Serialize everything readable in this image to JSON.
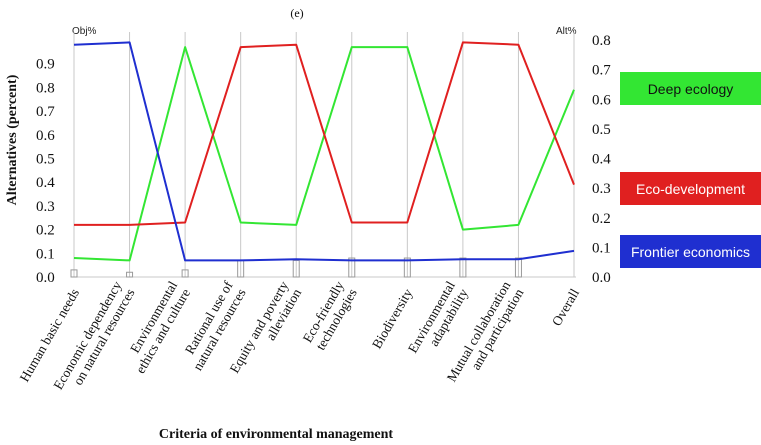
{
  "panel_label": "(e)",
  "colors": {
    "deep": "#33e633",
    "eco": "#e02020",
    "frontier": "#1f2fd0"
  },
  "chart_data": {
    "type": "line",
    "title": "(e)",
    "xlabel": "Criteria of environmental management",
    "ylabel": "Alternatives (percent)",
    "left_axis_header": "Obj%",
    "right_axis_header": "Alt%",
    "left_ticks": [
      "0.0",
      "0.1",
      "0.2",
      "0.3",
      "0.4",
      "0.5",
      "0.6",
      "0.7",
      "0.8",
      "0.9"
    ],
    "right_ticks": [
      "0.0",
      "0.1",
      "0.2",
      "0.3",
      "0.4",
      "0.5",
      "0.6",
      "0.7",
      "0.8"
    ],
    "ylim_left": [
      0,
      1.0
    ],
    "ylim_right": [
      0,
      0.8
    ],
    "categories": [
      [
        "Human basic needs"
      ],
      [
        "Economic dependency",
        "on natural resources"
      ],
      [
        "Environmental",
        "ethics and culture"
      ],
      [
        "Rational use of",
        "natural resources"
      ],
      [
        "Equity and poverty",
        "alleviation"
      ],
      [
        "Eco-friendly",
        "technologies"
      ],
      [
        "Biodiversity"
      ],
      [
        "Environmental",
        "adaptability"
      ],
      [
        "Mutual collaboration",
        "and participation"
      ],
      [
        "Overall"
      ]
    ],
    "objective_weights": [
      0.03,
      0.02,
      0.03,
      0.07,
      0.07,
      0.08,
      0.08,
      0.08,
      0.08,
      0.0
    ],
    "series": [
      {
        "name": "Deep ecology",
        "color_key": "deep",
        "values": [
          0.08,
          0.07,
          0.97,
          0.23,
          0.22,
          0.97,
          0.97,
          0.2,
          0.22,
          0.79
        ]
      },
      {
        "name": "Eco-development",
        "color_key": "eco",
        "values": [
          0.22,
          0.22,
          0.23,
          0.97,
          0.98,
          0.23,
          0.23,
          0.99,
          0.98,
          0.39
        ]
      },
      {
        "name": "Frontier economics",
        "color_key": "frontier",
        "values": [
          0.98,
          0.99,
          0.07,
          0.07,
          0.075,
          0.07,
          0.07,
          0.075,
          0.075,
          0.11
        ]
      }
    ]
  }
}
